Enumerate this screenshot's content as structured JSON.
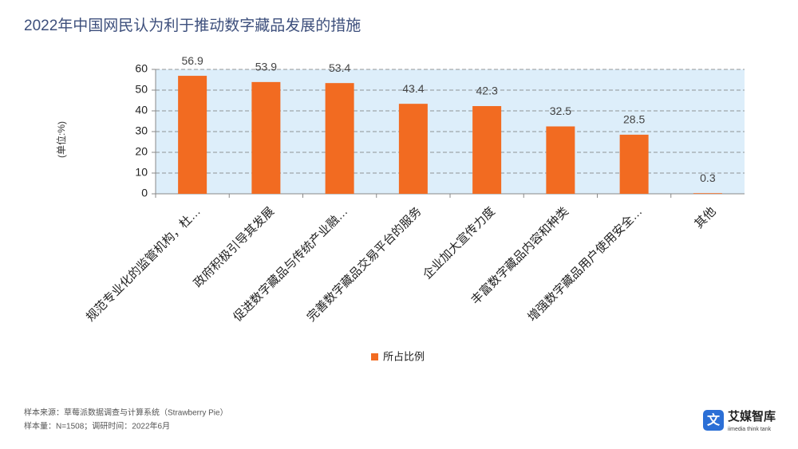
{
  "chart_data": {
    "type": "bar",
    "title": "2022年中国网民认为利于推动数字藏品发展的措施",
    "y_label": "(单位:%)",
    "categories": [
      "规范专业化的监管机构，杜…",
      "政府积极引导其发展",
      "促进数字藏品与传统产业融…",
      "完善数字藏品交易平台的服务",
      "企业加大宣传力度",
      "丰富数字藏品内容和种类",
      "增强数字藏品用户使用安全…",
      "其他"
    ],
    "series": [
      {
        "name": "所占比例",
        "color": "#f26b21",
        "values": [
          56.9,
          53.9,
          53.4,
          43.4,
          42.3,
          32.5,
          28.5,
          0.3
        ]
      }
    ],
    "ylim": [
      0,
      60
    ],
    "yticks": [
      0,
      10,
      20,
      30,
      40,
      50,
      60
    ],
    "grid": true
  },
  "footer": {
    "source": "样本来源：草莓派数据调查与计算系统（Strawberry Pie）",
    "sample": "样本量：N=1508；调研时间：2022年6月"
  },
  "logo": {
    "name": "艾媒智库",
    "subtitle": "iimedia think tank"
  }
}
